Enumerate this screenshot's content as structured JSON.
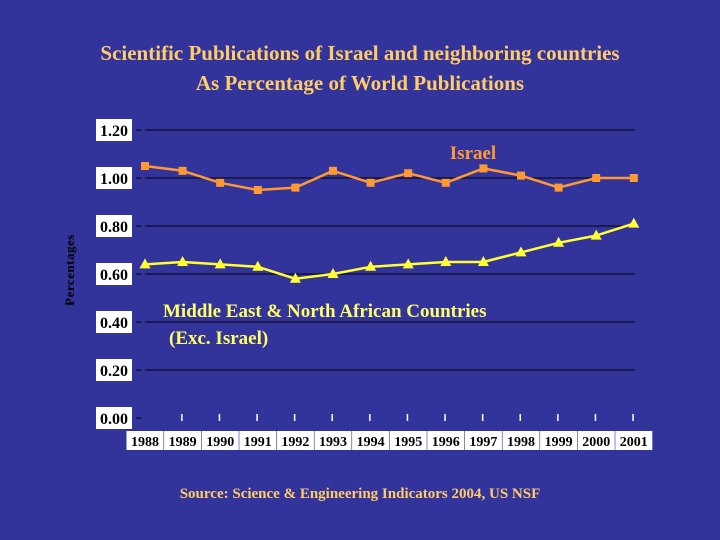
{
  "title": {
    "line1": "Scientific Publications of Israel and neighboring countries",
    "line2": "As Percentage of World Publications"
  },
  "source": "Source: Science & Engineering Indicators 2004, US NSF",
  "colors": {
    "background": "#33339c",
    "title": "#ffcc66",
    "israel": "#ff9933",
    "mena": "#ffff33",
    "label_bg": "#ffffff",
    "annotation_israel": "#ff9933",
    "annotation_mena": "#ffff66"
  },
  "chart_data": {
    "type": "line",
    "title": "Scientific Publications of Israel and neighboring countries As Percentage of World Publications",
    "xlabel": "",
    "ylabel": "Percentages",
    "ylim": [
      0,
      1.2
    ],
    "yticks": [
      "0.00",
      "0.20",
      "0.40",
      "0.60",
      "0.80",
      "1.00",
      "1.20"
    ],
    "grid": true,
    "categories": [
      "1988",
      "1989",
      "1990",
      "1991",
      "1992",
      "1993",
      "1994",
      "1995",
      "1996",
      "1997",
      "1998",
      "1999",
      "2000",
      "2001"
    ],
    "series": [
      {
        "name": "Israel",
        "marker": "square",
        "values": [
          1.05,
          1.03,
          0.98,
          0.95,
          0.96,
          1.03,
          0.98,
          1.02,
          0.98,
          1.04,
          1.01,
          0.96,
          1.0,
          1.0
        ]
      },
      {
        "name": "Middle East & North African Countries (Exc. Israel)",
        "marker": "triangle",
        "values": [
          0.64,
          0.65,
          0.64,
          0.63,
          0.58,
          0.6,
          0.63,
          0.64,
          0.65,
          0.65,
          0.69,
          0.73,
          0.76,
          0.81
        ]
      }
    ],
    "annotations": [
      {
        "text": "Israel",
        "series": 0
      },
      {
        "text": "Middle East & North African Countries",
        "series": 1
      },
      {
        "text": "(Exc. Israel)",
        "series": 1
      }
    ]
  }
}
